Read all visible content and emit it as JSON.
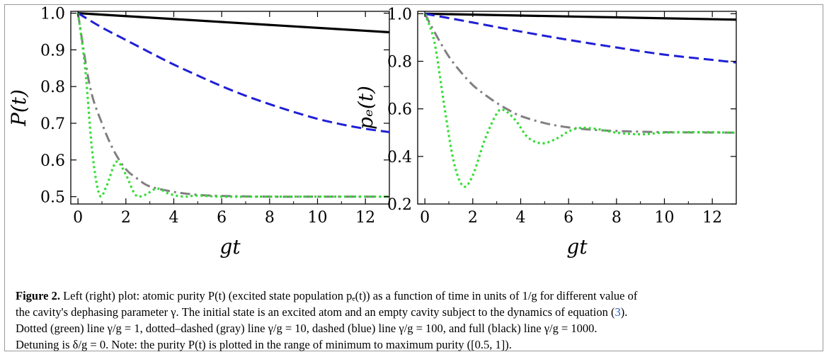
{
  "caption": {
    "label": "Figure 2.",
    "line1": "Left (right) plot: atomic purity P(t) (excited state population pₑ(t)) as a function of time in units of 1/g for different value of",
    "line2a": "the cavity's dephasing parameter γ. The initial state is an excited atom and an empty cavity subject to the dynamics of equation (",
    "eq_ref": "3",
    "line2b": ").",
    "line3": "Dotted (green) line γ/g = 1, dotted–dashed (gray) line γ/g = 10, dashed (blue) line γ/g = 100, and full (black) line γ/g = 1000.",
    "line4": "Detuning is δ/g = 0. Note: the purity P(t) is plotted in the range of minimum to maximum purity ([0.5, 1])."
  },
  "chart_data": [
    {
      "type": "line",
      "xlabel": "gt",
      "ylabel": "P(t)",
      "xlim": [
        -0.3,
        13
      ],
      "ylim": [
        0.48,
        1.005
      ],
      "xticks": [
        0,
        2,
        4,
        6,
        8,
        10,
        12
      ],
      "yticks": [
        0.5,
        0.6,
        0.7,
        0.8,
        0.9,
        1.0
      ],
      "ytick_labels": [
        "0.5",
        "0.6",
        "0.7",
        "0.8",
        "0.9",
        "1.0"
      ],
      "series": [
        {
          "style": "solid",
          "color": "#000000",
          "x": [
            0,
            13
          ],
          "y": [
            1.0,
            0.948
          ]
        },
        {
          "style": "dashed",
          "color": "#1f1fd6",
          "x": [
            0,
            1,
            2,
            3,
            4,
            5,
            6,
            7,
            8,
            9,
            10,
            11,
            12,
            13
          ],
          "y": [
            1.0,
            0.961,
            0.927,
            0.893,
            0.86,
            0.83,
            0.801,
            0.775,
            0.752,
            0.731,
            0.712,
            0.697,
            0.685,
            0.676
          ]
        },
        {
          "style": "dashdot",
          "color": "#808080",
          "x": [
            0,
            0.5,
            1,
            1.5,
            2,
            2.5,
            3,
            4,
            5,
            6,
            8,
            10,
            13
          ],
          "y": [
            1.0,
            0.8,
            0.7,
            0.625,
            0.575,
            0.548,
            0.528,
            0.513,
            0.505,
            0.502,
            0.5,
            0.5,
            0.5
          ]
        },
        {
          "style": "dotted",
          "color": "#33dd33",
          "x": [
            0,
            0.3,
            0.6,
            0.9,
            1.2,
            1.6,
            2.0,
            2.4,
            2.8,
            3.3,
            3.8,
            4.4,
            5.0,
            6.0,
            8.0,
            13.0
          ],
          "y": [
            1.0,
            0.85,
            0.62,
            0.505,
            0.53,
            0.595,
            0.56,
            0.505,
            0.505,
            0.522,
            0.508,
            0.5,
            0.503,
            0.5,
            0.5,
            0.5
          ]
        }
      ]
    },
    {
      "type": "line",
      "xlabel": "gt",
      "ylabel": "pₑ(t)",
      "xlim": [
        -0.3,
        13
      ],
      "ylim": [
        0.2,
        1.01
      ],
      "xticks": [
        0,
        2,
        4,
        6,
        8,
        10,
        12
      ],
      "yticks": [
        0.2,
        0.4,
        0.6,
        0.8,
        1.0
      ],
      "ytick_labels": [
        "0.2",
        "0.4",
        "0.6",
        "0.8",
        "1.0"
      ],
      "series": [
        {
          "style": "solid",
          "color": "#000000",
          "x": [
            0,
            13
          ],
          "y": [
            1.0,
            0.975
          ]
        },
        {
          "style": "dashed",
          "color": "#1f1fd6",
          "x": [
            0,
            2,
            4,
            6,
            8,
            10,
            12,
            13
          ],
          "y": [
            1.0,
            0.963,
            0.925,
            0.89,
            0.858,
            0.828,
            0.806,
            0.795
          ]
        },
        {
          "style": "dashdot",
          "color": "#808080",
          "x": [
            0,
            0.5,
            1,
            1.5,
            2,
            2.5,
            3,
            3.5,
            4,
            5,
            6,
            7,
            8,
            10,
            13
          ],
          "y": [
            1.0,
            0.905,
            0.82,
            0.755,
            0.7,
            0.66,
            0.625,
            0.595,
            0.57,
            0.54,
            0.522,
            0.512,
            0.507,
            0.502,
            0.5
          ]
        },
        {
          "style": "dotted",
          "color": "#33dd33",
          "x": [
            0,
            0.4,
            0.8,
            1.2,
            1.6,
            2.0,
            2.5,
            3.0,
            3.3,
            3.8,
            4.3,
            4.9,
            5.5,
            6.0,
            6.5,
            7.2,
            8.0,
            9.0,
            10.0,
            11.5,
            13.0
          ],
          "y": [
            1.0,
            0.88,
            0.62,
            0.38,
            0.275,
            0.32,
            0.47,
            0.58,
            0.595,
            0.55,
            0.48,
            0.455,
            0.475,
            0.505,
            0.52,
            0.515,
            0.5,
            0.493,
            0.5,
            0.502,
            0.5
          ]
        }
      ]
    }
  ]
}
